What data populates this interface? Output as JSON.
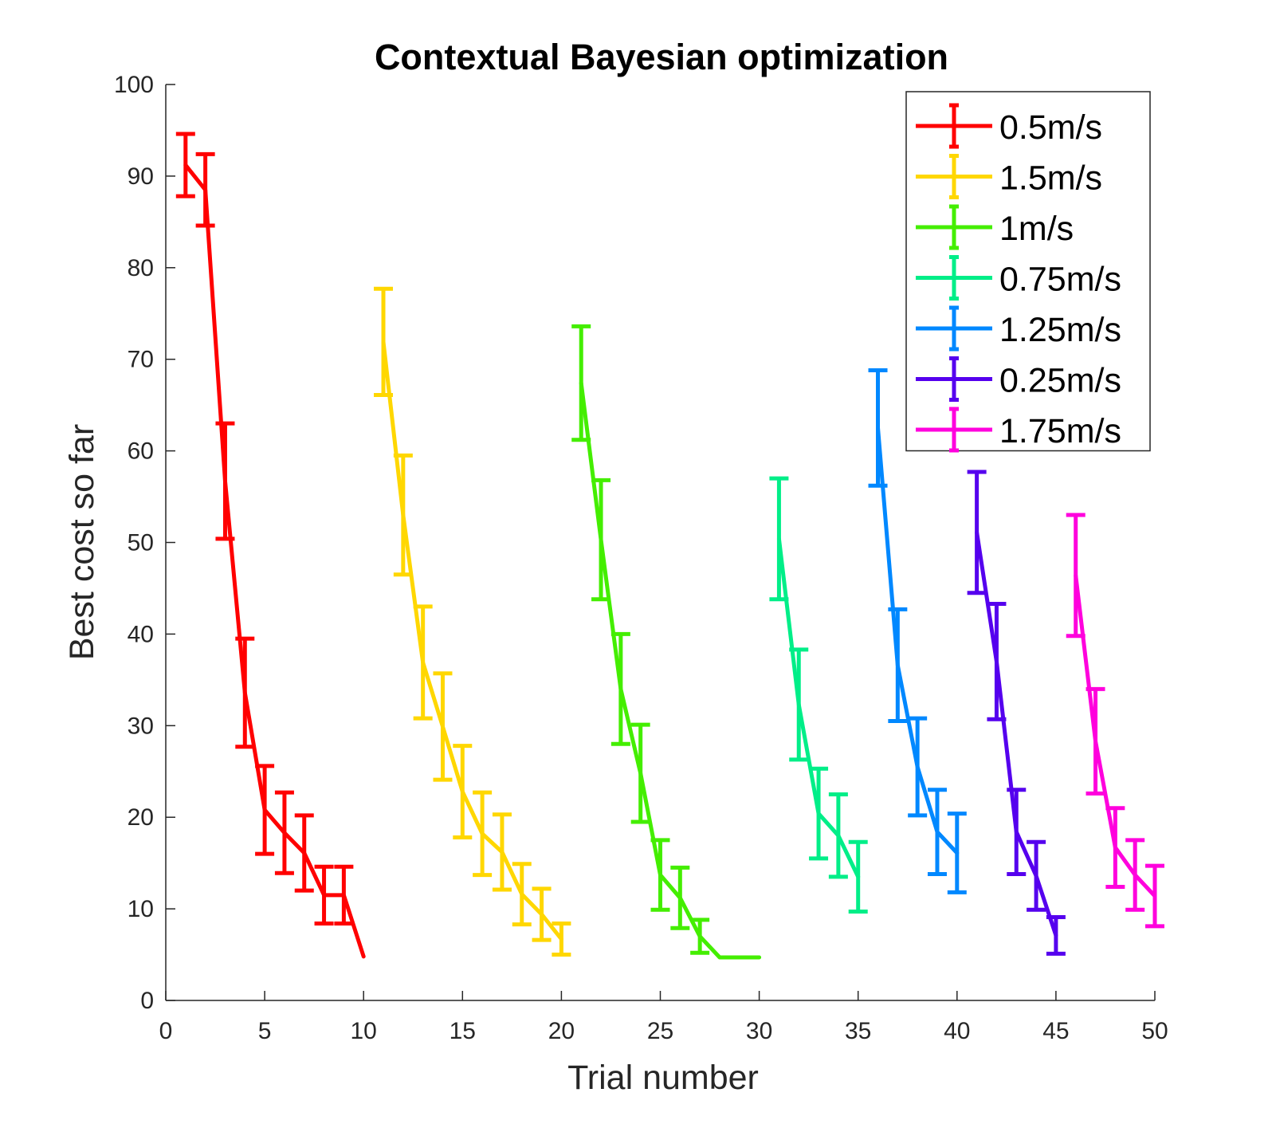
{
  "chart_data": {
    "type": "line",
    "title": "Contextual Bayesian optimization",
    "xlabel": "Trial number",
    "ylabel": "Best cost so far",
    "xlim": [
      0,
      50
    ],
    "ylim": [
      0,
      100
    ],
    "xticks": [
      0,
      5,
      10,
      15,
      20,
      25,
      30,
      35,
      40,
      45,
      50
    ],
    "yticks": [
      0,
      10,
      20,
      30,
      40,
      50,
      60,
      70,
      80,
      90,
      100
    ],
    "xtick_labels": [
      "0",
      "5",
      "10",
      "15",
      "20",
      "25",
      "30",
      "35",
      "40",
      "45",
      "50"
    ],
    "ytick_labels": [
      "0",
      "10",
      "20",
      "30",
      "40",
      "50",
      "60",
      "70",
      "80",
      "90",
      "100"
    ],
    "grid": false,
    "legend_position": "top-right",
    "error_bars": true,
    "series": [
      {
        "name": "0.5m/s",
        "color": "#ff0000",
        "x": [
          1,
          2,
          3,
          4,
          5,
          6,
          7,
          8,
          9,
          10
        ],
        "y": [
          91.2,
          88.5,
          56.7,
          33.6,
          20.8,
          18.3,
          16.1,
          11.5,
          11.5,
          4.8
        ],
        "err": [
          3.4,
          3.9,
          6.3,
          5.9,
          4.8,
          4.4,
          4.1,
          3.1,
          3.1,
          0
        ]
      },
      {
        "name": "1.5m/s",
        "color": "#ffd700",
        "x": [
          11,
          12,
          13,
          14,
          15,
          16,
          17,
          18,
          19,
          20
        ],
        "y": [
          71.9,
          53.0,
          36.9,
          29.9,
          22.8,
          18.2,
          16.2,
          11.6,
          9.4,
          6.7
        ],
        "err": [
          5.8,
          6.5,
          6.1,
          5.8,
          5.0,
          4.5,
          4.1,
          3.3,
          2.8,
          1.7
        ]
      },
      {
        "name": "1m/s",
        "color": "#44ee00",
        "x": [
          21,
          22,
          23,
          24,
          25,
          26,
          27,
          28,
          29,
          30
        ],
        "y": [
          67.4,
          50.3,
          34.0,
          24.8,
          13.7,
          11.2,
          7.0,
          4.7,
          4.7,
          4.7
        ],
        "err": [
          6.2,
          6.5,
          6.0,
          5.3,
          3.8,
          3.3,
          1.8,
          0,
          0,
          0
        ]
      },
      {
        "name": "0.75m/s",
        "color": "#00ee88",
        "x": [
          31,
          32,
          33,
          34,
          35
        ],
        "y": [
          50.4,
          32.3,
          20.4,
          18.0,
          13.5
        ],
        "err": [
          6.6,
          6.0,
          4.9,
          4.5,
          3.8
        ]
      },
      {
        "name": "1.25m/s",
        "color": "#0088ff",
        "x": [
          36,
          37,
          38,
          39,
          40
        ],
        "y": [
          62.5,
          36.6,
          25.5,
          18.4,
          16.1
        ],
        "err": [
          6.3,
          6.1,
          5.3,
          4.6,
          4.3
        ]
      },
      {
        "name": "0.25m/s",
        "color": "#5500ee",
        "x": [
          41,
          42,
          43,
          44,
          45
        ],
        "y": [
          51.1,
          37.0,
          18.4,
          13.6,
          7.1
        ],
        "err": [
          6.6,
          6.3,
          4.6,
          3.7,
          2.0
        ]
      },
      {
        "name": "1.75m/s",
        "color": "#ff00dd",
        "x": [
          46,
          47,
          48,
          49,
          50
        ],
        "y": [
          46.4,
          28.3,
          16.7,
          13.7,
          11.4
        ],
        "err": [
          6.6,
          5.7,
          4.3,
          3.8,
          3.3
        ]
      }
    ]
  }
}
